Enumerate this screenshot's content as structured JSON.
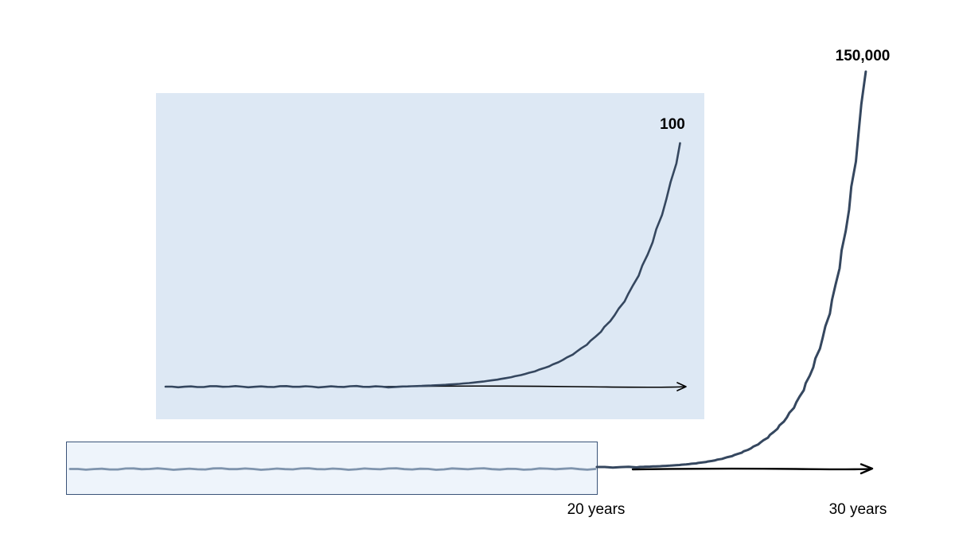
{
  "colors": {
    "zoom_panel_fill": "#dde8f4",
    "highlight_fill": "#eef4fb",
    "highlight_border": "#3a5378",
    "curve": "#35475f",
    "highlight_curve": "#7f94ad",
    "axis": "#000000"
  },
  "chart_data": [
    {
      "type": "line",
      "title": "",
      "xlabel": "",
      "ylabel": "",
      "x_tick_labels": [
        "20 years",
        "30 years"
      ],
      "peak_label": "150,000",
      "x": [
        0,
        20,
        21,
        22,
        23,
        24,
        25,
        26,
        27,
        28,
        29,
        30
      ],
      "series": [
        {
          "values": [
            0,
            1,
            2,
            4,
            8,
            15,
            40,
            100,
            400,
            2000,
            20000,
            150000
          ]
        }
      ],
      "grid": false,
      "legend": "none",
      "highlighted_range": [
        0,
        20
      ]
    },
    {
      "type": "line",
      "title": "",
      "xlabel": "",
      "ylabel": "",
      "peak_label": "100",
      "x": [
        0,
        5,
        10,
        12,
        14,
        15,
        16,
        17,
        18,
        19,
        20
      ],
      "series": [
        {
          "values": [
            0,
            0,
            0.5,
            1,
            2,
            3,
            6,
            12,
            25,
            50,
            100
          ]
        }
      ],
      "grid": false,
      "legend": "none",
      "description_range": [
        0,
        20
      ]
    }
  ]
}
